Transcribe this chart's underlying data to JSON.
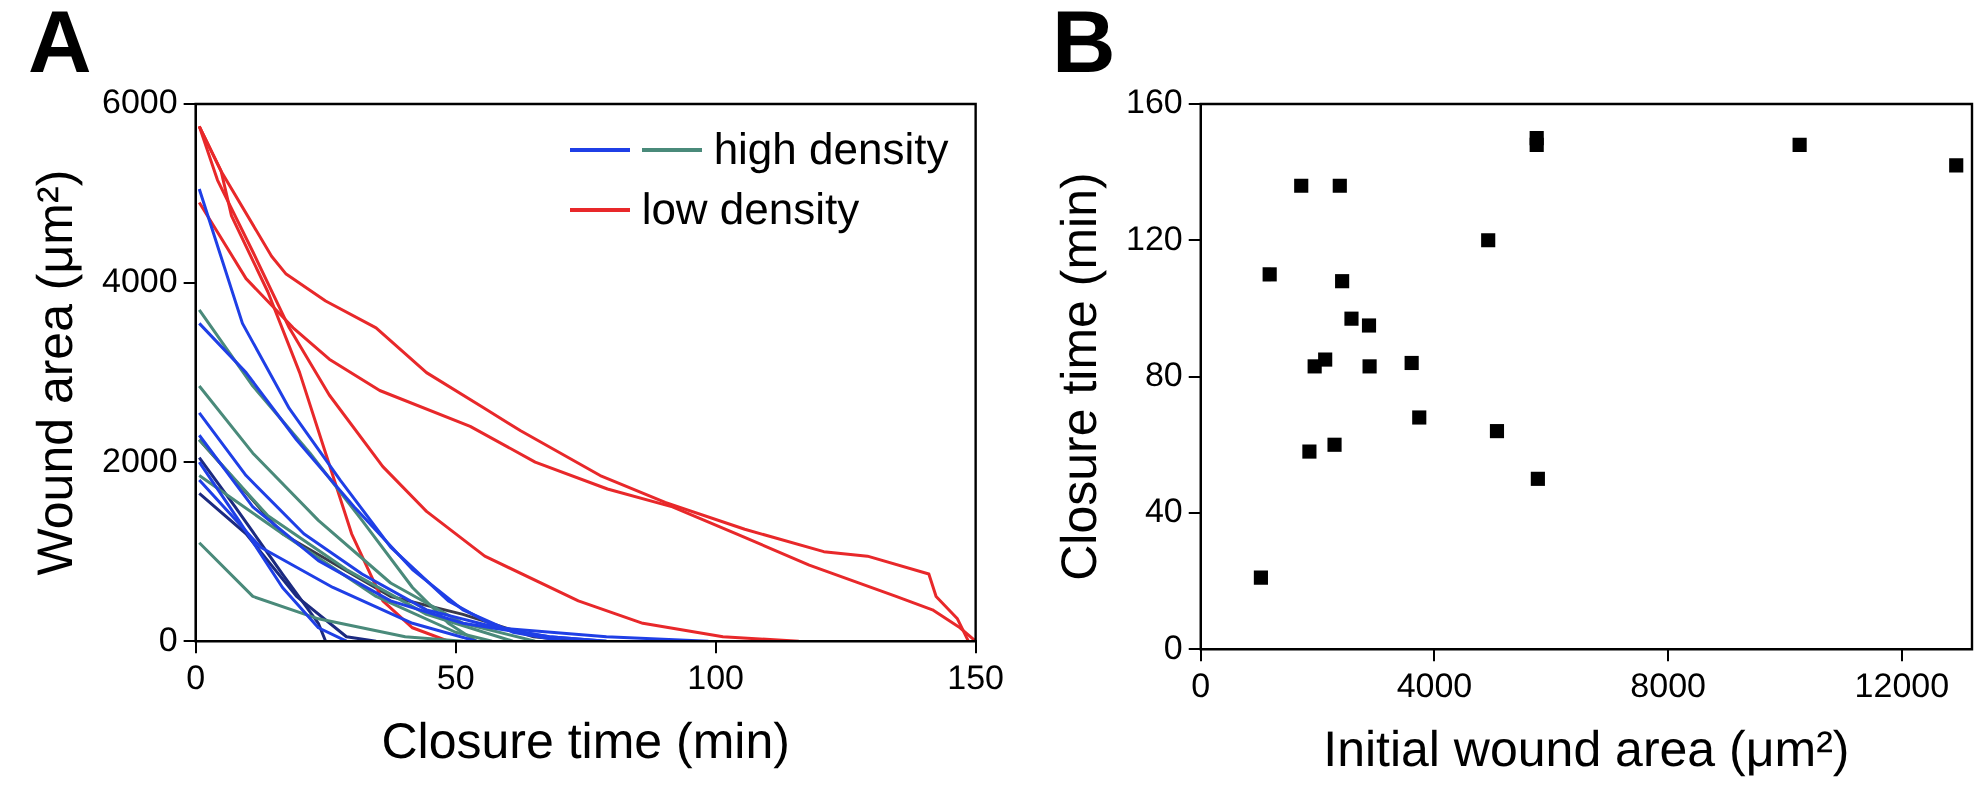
{
  "chart_data": [
    {
      "type": "line",
      "xlabel": "Closure time (min)",
      "ylabel": "Wound area (μm²)",
      "annotations": [
        "A"
      ],
      "xlim": [
        0,
        150
      ],
      "xticks": [
        0,
        50,
        100,
        150
      ],
      "ylim": [
        0,
        6000
      ],
      "yticks": [
        0,
        2000,
        4000,
        6000
      ],
      "grid": false,
      "legend": "top right",
      "marker": "none",
      "line_style": "solid",
      "series": [
        {
          "color": "#1f3fe6",
          "x": [
            0.7,
            9,
            18,
            27.8,
            37.5,
            48.6,
            58,
            68,
            79
          ],
          "values": [
            5050,
            3550,
            2600,
            1800,
            1050,
            450,
            150,
            50,
            0
          ]
        },
        {
          "color": "#1f3fe6",
          "x": [
            0.7,
            9.7,
            19.4,
            30.5,
            41.7,
            51.4,
            61,
            70.8
          ],
          "values": [
            3550,
            3000,
            2250,
            1500,
            800,
            350,
            100,
            0
          ]
        },
        {
          "color": "#1f3fe6",
          "x": [
            0.7,
            9.7,
            20.8,
            32,
            44.4,
            58,
            79,
            98.6
          ],
          "values": [
            2550,
            1850,
            1200,
            750,
            350,
            150,
            50,
            0
          ]
        },
        {
          "color": "#1f3fe6",
          "x": [
            0.7,
            11,
            23.6,
            37.5,
            51.4,
            68,
            79
          ],
          "values": [
            2300,
            1500,
            900,
            450,
            200,
            50,
            0
          ]
        },
        {
          "color": "#1f3fe6",
          "x": [
            0.7,
            8.3,
            16.7,
            23.6,
            29
          ],
          "values": [
            2000,
            1350,
            600,
            150,
            0
          ]
        },
        {
          "color": "#1f3fe6",
          "x": [
            0.7,
            12.5,
            26.4,
            41.7,
            54
          ],
          "values": [
            1800,
            1050,
            600,
            200,
            0
          ]
        },
        {
          "name": "high density",
          "color": "#4a8a7a",
          "x": [
            0.7,
            11,
            22,
            32,
            41.7,
            48.6,
            54
          ],
          "values": [
            3700,
            2850,
            2100,
            1350,
            600,
            200,
            0
          ]
        },
        {
          "color": "#4a8a7a",
          "x": [
            0.7,
            11,
            23.6,
            37.5,
            51.4,
            65.3
          ],
          "values": [
            2850,
            2100,
            1350,
            650,
            200,
            0
          ]
        },
        {
          "color": "#4a8a7a",
          "x": [
            0.7,
            13.9,
            29,
            44.4,
            61
          ],
          "values": [
            2250,
            1400,
            800,
            300,
            0
          ]
        },
        {
          "color": "#4a8a7a",
          "x": [
            0.7,
            11,
            23.6,
            40.3,
            51.4
          ],
          "values": [
            1100,
            500,
            250,
            50,
            0
          ]
        },
        {
          "color": "#4a8a7a",
          "x": [
            0.7,
            16.7,
            34.7,
            50,
            57
          ],
          "values": [
            1850,
            1200,
            500,
            100,
            0
          ]
        },
        {
          "name": "low density",
          "color": "#e8282a",
          "x": [
            0.7,
            4.9,
            14.6,
            17.4,
            25,
            34.7,
            44.4,
            55.6,
            62.5,
            77.8,
            90.3,
            105.6,
            120.8,
            129.2,
            141,
            142.4,
            146.5,
            148.6
          ],
          "values": [
            5750,
            5250,
            4300,
            4100,
            3800,
            3500,
            3000,
            2600,
            2350,
            1850,
            1550,
            1250,
            1000,
            950,
            750,
            500,
            250,
            0
          ]
        },
        {
          "color": "#e8282a",
          "x": [
            0.7,
            9.7,
            18.75,
            25.7,
            35.4,
            52.8,
            65.3,
            79.2,
            91.7,
            104,
            118,
            134.7,
            141.7,
            147,
            150
          ],
          "values": [
            4900,
            4050,
            3500,
            3150,
            2800,
            2400,
            2000,
            1700,
            1500,
            1200,
            850,
            500,
            350,
            150,
            0
          ]
        },
        {
          "color": "#e8282a",
          "x": [
            0.7,
            4.2,
            11,
            18,
            25.7,
            36,
            44.4,
            55.6,
            73.6,
            86,
            101.4,
            116
          ],
          "values": [
            5750,
            5150,
            4350,
            3500,
            2750,
            1950,
            1450,
            950,
            450,
            200,
            50,
            0
          ]
        },
        {
          "color": "#e8282a",
          "x": [
            0.7,
            4.9,
            6.9,
            13.9,
            20,
            25,
            30,
            36,
            41.7,
            48.6
          ],
          "values": [
            5750,
            5250,
            4750,
            3900,
            3000,
            2100,
            1200,
            450,
            150,
            0
          ]
        },
        {
          "color": "#1c2a80",
          "x": [
            0.7,
            7.6,
            16.7,
            23.6,
            25
          ],
          "values": [
            2050,
            1500,
            750,
            200,
            0
          ]
        },
        {
          "color": "#1c2a80",
          "x": [
            0.7,
            9.7,
            19.4,
            29,
            34.7
          ],
          "values": [
            1650,
            1200,
            500,
            50,
            0
          ]
        },
        {
          "color": "#3a3a4a",
          "x": [
            0.7,
            16.7,
            37.5,
            51.4,
            65,
            73.6
          ],
          "values": [
            2250,
            1200,
            500,
            300,
            50,
            0
          ]
        }
      ]
    },
    {
      "type": "scatter",
      "xlabel": "Initial wound area (μm²)",
      "ylabel": "Closure time (min)",
      "annotations": [
        "B"
      ],
      "xlim": [
        0,
        13200
      ],
      "xticks": [
        0,
        4000,
        8000,
        12000
      ],
      "ylim": [
        0,
        160
      ],
      "yticks": [
        0,
        40,
        80,
        120,
        160
      ],
      "grid": false,
      "marker": "square",
      "series": [
        {
          "color": "#000000",
          "x": [
            1030,
            1180,
            1720,
            2380,
            2420,
            2580,
            2880,
            1950,
            2130,
            2890,
            3610,
            3740,
            1860,
            2290,
            4920,
            5070,
            5770,
            5750,
            5750,
            10250,
            12930
          ],
          "values": [
            21,
            110,
            136,
            136,
            108,
            97,
            95,
            83,
            85,
            83,
            84,
            68,
            58,
            60,
            120,
            64,
            50,
            150,
            148,
            148,
            142
          ]
        }
      ]
    }
  ]
}
